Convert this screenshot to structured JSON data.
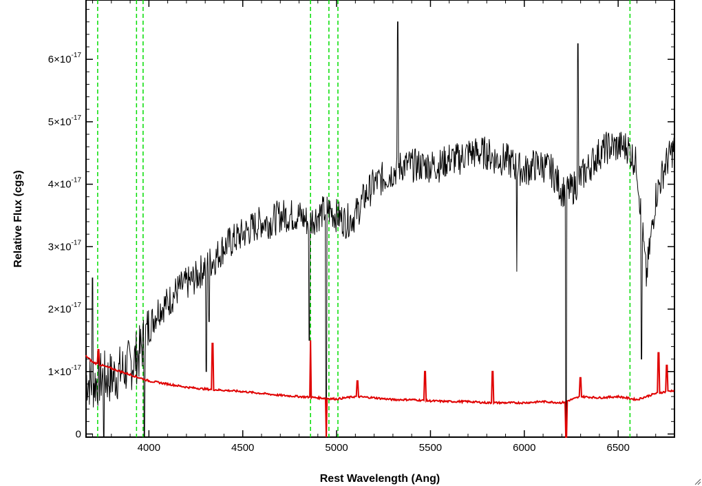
{
  "chart_data": {
    "type": "line",
    "title": "",
    "xlabel": "Rest Wavelength (Ang)",
    "ylabel": "Relative Flux (cgs)",
    "xlim": [
      3665,
      6800
    ],
    "ylim": [
      -0.05,
      6.95
    ],
    "y_scale_note": "×10^-17",
    "x_ticks": [
      4000,
      4500,
      5000,
      5500,
      6000,
      6500
    ],
    "x_tick_labels": [
      "4000",
      "4500",
      "5000",
      "5500",
      "6000",
      "6500"
    ],
    "y_ticks": [
      0,
      1,
      2,
      3,
      4,
      5,
      6
    ],
    "y_tick_labels": [
      {
        "mant": "0",
        "exp": ""
      },
      {
        "mant": "1×10",
        "exp": "-17"
      },
      {
        "mant": "2×10",
        "exp": "-17"
      },
      {
        "mant": "3×10",
        "exp": "-17"
      },
      {
        "mant": "4×10",
        "exp": "-17"
      },
      {
        "mant": "5×10",
        "exp": "-17"
      },
      {
        "mant": "6×10",
        "exp": "-17"
      }
    ],
    "grid": false,
    "legend": "none",
    "reference_lines": [
      3727,
      3934,
      3969,
      4861,
      4959,
      5007,
      6563
    ],
    "series": [
      {
        "color": "#000000",
        "x": [
          3665,
          3700,
          3750,
          3800,
          3850,
          3900,
          3950,
          4000,
          4050,
          4100,
          4150,
          4200,
          4250,
          4300,
          4350,
          4400,
          4450,
          4500,
          4550,
          4600,
          4650,
          4700,
          4750,
          4800,
          4850,
          4900,
          4950,
          5000,
          5050,
          5100,
          5150,
          5200,
          5250,
          5300,
          5350,
          5400,
          5450,
          5500,
          5550,
          5600,
          5650,
          5700,
          5750,
          5800,
          5850,
          5900,
          5950,
          6000,
          6050,
          6100,
          6150,
          6200,
          6250,
          6300,
          6350,
          6400,
          6450,
          6500,
          6550,
          6600,
          6650,
          6700,
          6750,
          6800
        ],
        "y": [
          0.9,
          0.8,
          0.9,
          0.9,
          1.0,
          1.1,
          1.3,
          1.7,
          2.0,
          2.1,
          2.3,
          2.4,
          2.5,
          2.7,
          2.8,
          3.0,
          3.1,
          3.2,
          3.3,
          3.4,
          3.4,
          3.5,
          3.5,
          3.5,
          3.4,
          3.5,
          3.6,
          3.5,
          3.4,
          3.5,
          3.8,
          4.0,
          4.1,
          4.2,
          4.3,
          4.3,
          4.3,
          4.3,
          4.3,
          4.4,
          4.4,
          4.5,
          4.5,
          4.5,
          4.4,
          4.4,
          4.3,
          4.2,
          4.3,
          4.3,
          4.2,
          3.9,
          3.9,
          4.1,
          4.3,
          4.5,
          4.6,
          4.6,
          4.6,
          4.3,
          2.5,
          3.8,
          4.3,
          4.6
        ],
        "spikes": [
          {
            "x": 3700,
            "y": 2.5
          },
          {
            "x": 3760,
            "y": -0.05
          },
          {
            "x": 3975,
            "y": -0.05
          },
          {
            "x": 4305,
            "y": 1.0
          },
          {
            "x": 4320,
            "y": 1.8
          },
          {
            "x": 4855,
            "y": 1.5
          },
          {
            "x": 4945,
            "y": -0.05
          },
          {
            "x": 5325,
            "y": 6.6
          },
          {
            "x": 5960,
            "y": 2.6
          },
          {
            "x": 6222,
            "y": -0.05
          },
          {
            "x": 6285,
            "y": 6.25
          },
          {
            "x": 6625,
            "y": 1.2
          }
        ]
      },
      {
        "color": "#e00000",
        "x": [
          3665,
          3700,
          3750,
          3800,
          3850,
          3900,
          3950,
          4000,
          4100,
          4200,
          4300,
          4400,
          4500,
          4600,
          4700,
          4800,
          4900,
          5000,
          5100,
          5200,
          5300,
          5400,
          5500,
          5600,
          5700,
          5800,
          5900,
          6000,
          6100,
          6200,
          6300,
          6400,
          6500,
          6600,
          6700,
          6800
        ],
        "y": [
          1.25,
          1.15,
          1.1,
          1.05,
          1.0,
          0.95,
          0.9,
          0.85,
          0.8,
          0.75,
          0.72,
          0.7,
          0.68,
          0.65,
          0.62,
          0.6,
          0.58,
          0.56,
          0.6,
          0.58,
          0.55,
          0.55,
          0.53,
          0.52,
          0.52,
          0.5,
          0.5,
          0.5,
          0.52,
          0.5,
          0.6,
          0.58,
          0.6,
          0.55,
          0.65,
          0.7
        ],
        "spikes": [
          {
            "x": 3730,
            "y": 1.35
          },
          {
            "x": 4340,
            "y": 1.45
          },
          {
            "x": 4861,
            "y": 1.5
          },
          {
            "x": 4945,
            "y": -0.05
          },
          {
            "x": 5110,
            "y": 0.85
          },
          {
            "x": 5470,
            "y": 1.0
          },
          {
            "x": 5830,
            "y": 1.0
          },
          {
            "x": 6222,
            "y": -0.05
          },
          {
            "x": 6300,
            "y": 0.9
          },
          {
            "x": 6715,
            "y": 1.3
          },
          {
            "x": 6760,
            "y": 1.1
          }
        ]
      }
    ]
  }
}
